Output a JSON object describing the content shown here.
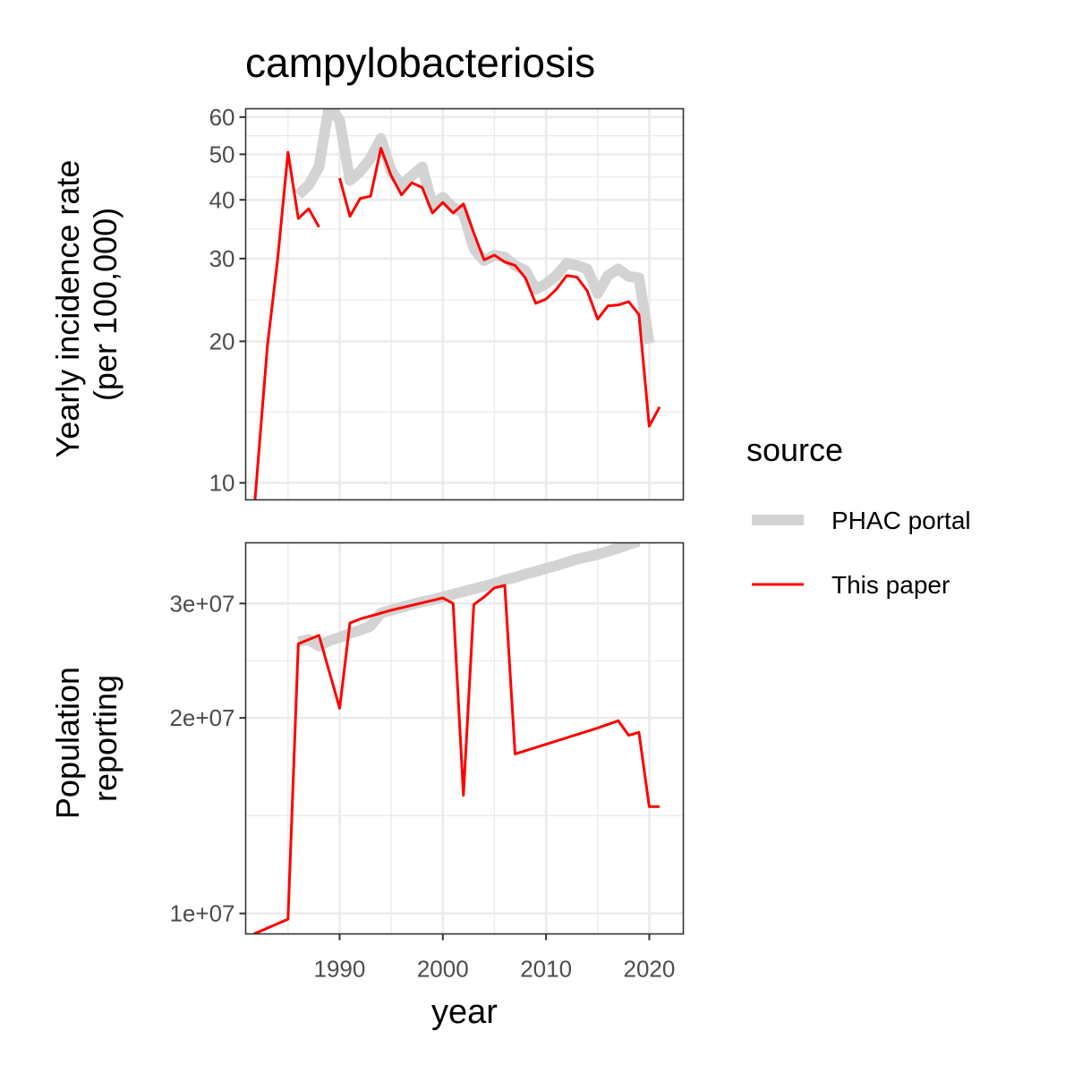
{
  "chart_data": {
    "type": "line",
    "title": "campylobacteriosis",
    "xlabel": "year",
    "x_range": [
      1980.9,
      2023.3
    ],
    "x_ticks": [
      1990,
      2000,
      2010,
      2020
    ],
    "x_tick_labels": [
      "1990",
      "2000",
      "2010",
      "2020"
    ],
    "legend": {
      "title": "source",
      "position": "right",
      "entries": [
        {
          "label": "PHAC portal",
          "color": "#d3d3d3"
        },
        {
          "label": "This paper",
          "color": "#ff0000"
        }
      ]
    },
    "panels": [
      {
        "ylabel_lines": [
          "Yearly incidence rate",
          "(per 100,000)"
        ],
        "scale": "log",
        "ylim": [
          9.2,
          62.5
        ],
        "y_ticks": [
          10,
          20,
          30,
          40,
          50,
          60
        ],
        "y_tick_labels": [
          "10",
          "20",
          "30",
          "40",
          "50",
          "60"
        ],
        "series": [
          {
            "name": "PHAC portal",
            "color": "#d3d3d3",
            "x": [
              1986,
              1987,
              1988,
              1989,
              1990,
              1991,
              1992,
              1993,
              1994,
              1995,
              1996,
              1997,
              1998,
              1999,
              2000,
              2001,
              2002,
              2003,
              2004,
              2005,
              2006,
              2007,
              2008,
              2009,
              2010,
              2011,
              2012,
              2013,
              2014,
              2015,
              2016,
              2017,
              2018,
              2019,
              2020
            ],
            "y": [
              41,
              43,
              47,
              63.5,
              59,
              44,
              46,
              49,
              54,
              46,
              43,
              45,
              47,
              39,
              40.5,
              38.5,
              37.5,
              31.5,
              29.7,
              30.5,
              30.2,
              29,
              28.3,
              25.8,
              26.5,
              27.6,
              29.3,
              29,
              28.5,
              25.3,
              27.6,
              28.5,
              27.5,
              27.3,
              19.8
            ]
          },
          {
            "name": "This paper",
            "color": "#ff0000",
            "segments": [
              {
                "x": [
                  1981.7,
                  1983,
                  1984,
                  1985,
                  1986,
                  1987,
                  1988
                ],
                "y": [
                  8.6,
                  19.5,
                  30,
                  50.5,
                  36.5,
                  38.3,
                  35
                ]
              },
              {
                "x": [
                  1990,
                  1991,
                  1992,
                  1993,
                  1994,
                  1995,
                  1996,
                  1997,
                  1998,
                  1999,
                  2000,
                  2001,
                  2002,
                  2003,
                  2004,
                  2005,
                  2006,
                  2007,
                  2008,
                  2009,
                  2010,
                  2011,
                  2012,
                  2013,
                  2014,
                  2015,
                  2016,
                  2017,
                  2018,
                  2019,
                  2020,
                  2021
                ],
                "y": [
                  44.5,
                  36.9,
                  40.3,
                  40.7,
                  51.5,
                  45,
                  41,
                  43.5,
                  42.5,
                  37.5,
                  39.5,
                  37.5,
                  39.2,
                  34,
                  29.8,
                  30.5,
                  29.5,
                  29,
                  27.3,
                  24.1,
                  24.6,
                  25.8,
                  27.6,
                  27.4,
                  25.6,
                  22.3,
                  23.8,
                  23.9,
                  24.3,
                  22.8,
                  13.2,
                  14.5
                ]
              }
            ]
          }
        ]
      },
      {
        "ylabel_lines": [
          "Population",
          "reporting"
        ],
        "scale": "log",
        "ylim": [
          9300000,
          37200000
        ],
        "y_ticks": [
          10000000,
          20000000,
          30000000
        ],
        "y_tick_labels": [
          "1e+07",
          "2e+07",
          "3e+07"
        ],
        "series": [
          {
            "name": "PHAC portal",
            "color": "#d3d3d3",
            "x": [
              1986,
              1987,
              1988,
              1989,
              1990,
              1991,
              1992,
              1993,
              1994,
              1995,
              1996,
              1997,
              1998,
              1999,
              2000,
              2001,
              2002,
              2003,
              2004,
              2005,
              2006,
              2007,
              2008,
              2009,
              2010,
              2011,
              2012,
              2013,
              2014,
              2015,
              2016,
              2017,
              2018,
              2019
            ],
            "y": [
              26200000,
              26400000,
              25800000,
              26300000,
              26600000,
              27000000,
              27300000,
              27700000,
              29000000,
              29300000,
              29600000,
              29900000,
              30200000,
              30400000,
              30700000,
              31000000,
              31300000,
              31600000,
              31900000,
              32200000,
              32600000,
              32900000,
              33300000,
              33600000,
              34000000,
              34300000,
              34700000,
              35100000,
              35400000,
              35700000,
              36100000,
              36500000,
              37000000,
              37400000
            ]
          },
          {
            "name": "This paper",
            "color": "#ff0000",
            "x": [
              1981.7,
              1985,
              1986,
              1988,
              1990,
              1991,
              1992,
              1995,
              2000,
              2001,
              2002,
              2003,
              2004,
              2005,
              2006,
              2007,
              2015,
              2017,
              2018,
              2019,
              2020,
              2021
            ],
            "y": [
              9300000,
              9800000,
              26000000,
              26800000,
              20700000,
              28000000,
              28400000,
              29300000,
              30600000,
              30000000,
              15200000,
              29900000,
              30700000,
              31700000,
              32000000,
              17600000,
              19300000,
              19800000,
              18800000,
              19000000,
              14600000,
              14600000
            ]
          }
        ]
      }
    ]
  }
}
